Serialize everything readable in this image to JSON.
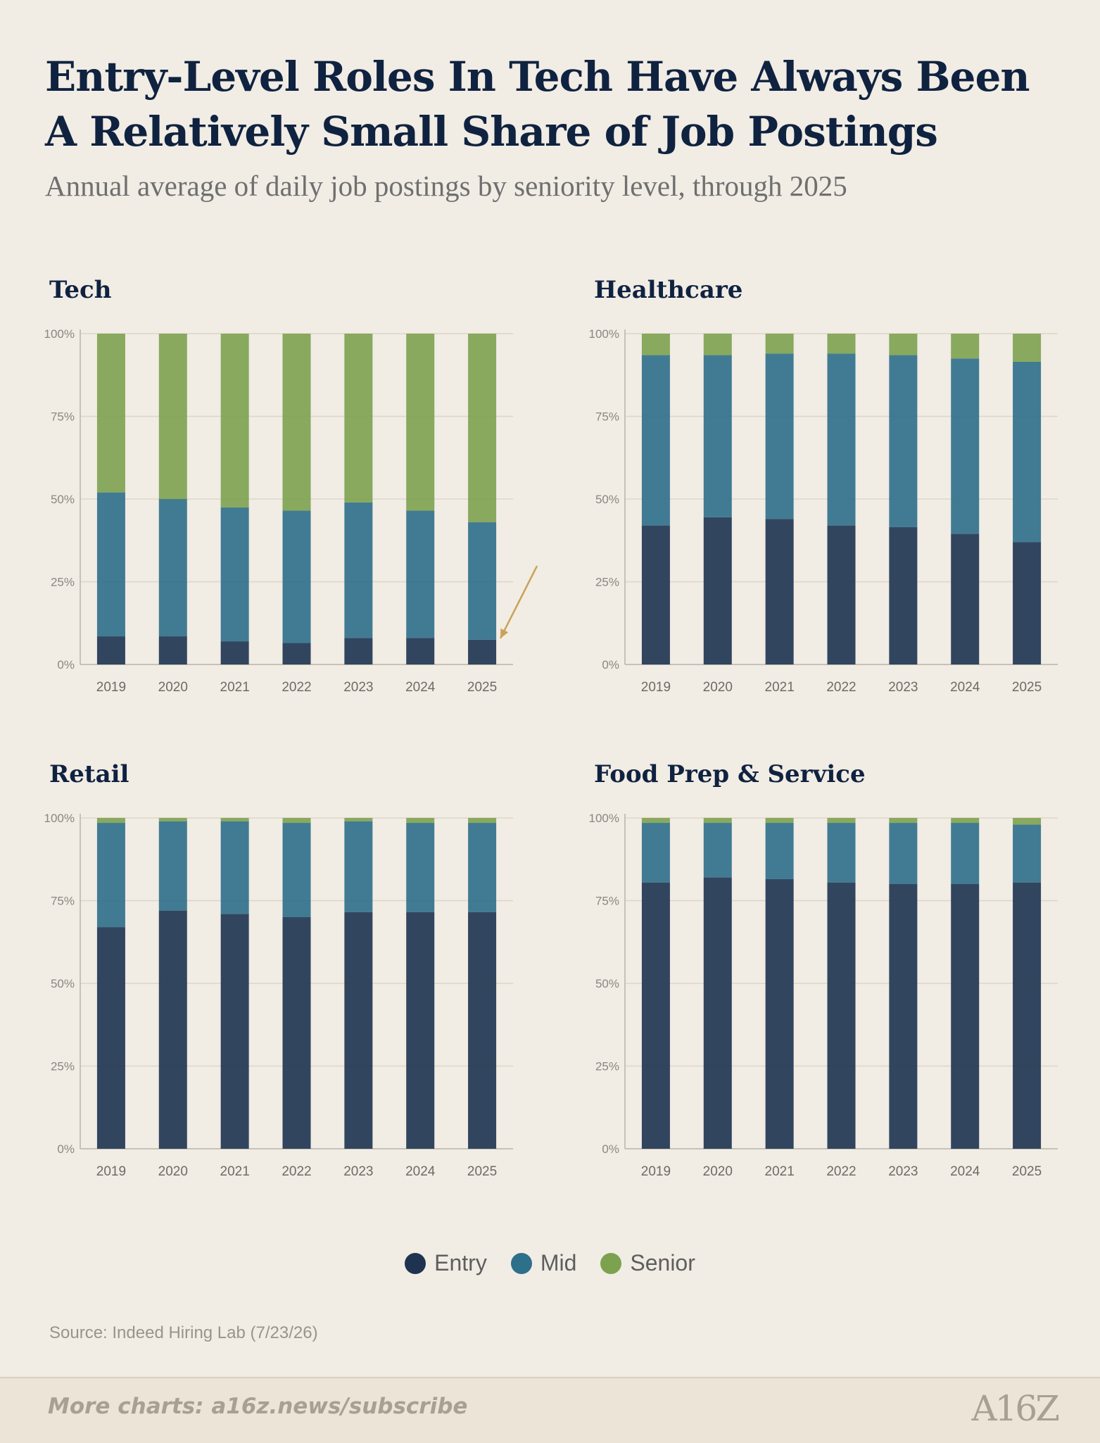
{
  "title": "Entry-Level Roles In Tech Have Always Been A Relatively Small Share of Job Postings",
  "subtitle": "Annual average of daily job postings by seniority level, through 2025",
  "colors": {
    "entry": "#1d3350",
    "mid": "#2e6f8a",
    "senior": "#7ca24f",
    "background": "#f1ece4",
    "annotation_arrow": "#c9a25a"
  },
  "chart_data": [
    {
      "type": "bar",
      "stacked": true,
      "title": "Tech",
      "categories": [
        "2019",
        "2020",
        "2021",
        "2022",
        "2023",
        "2024",
        "2025"
      ],
      "yticks": [
        "0%",
        "25%",
        "50%",
        "75%",
        "100%"
      ],
      "ylim": [
        0,
        100
      ],
      "grid": true,
      "annotation": "arrow pointing to the 2025 Entry share",
      "series": [
        {
          "name": "Entry",
          "values": [
            8.5,
            8.5,
            7,
            6.5,
            8,
            8,
            7.5
          ]
        },
        {
          "name": "Mid",
          "values": [
            43.5,
            41.5,
            40.5,
            40,
            41,
            38.5,
            35.5
          ]
        },
        {
          "name": "Senior",
          "values": [
            48,
            50,
            52.5,
            53.5,
            51,
            53.5,
            57
          ]
        }
      ]
    },
    {
      "type": "bar",
      "stacked": true,
      "title": "Healthcare",
      "categories": [
        "2019",
        "2020",
        "2021",
        "2022",
        "2023",
        "2024",
        "2025"
      ],
      "yticks": [
        "0%",
        "25%",
        "50%",
        "75%",
        "100%"
      ],
      "ylim": [
        0,
        100
      ],
      "grid": true,
      "series": [
        {
          "name": "Entry",
          "values": [
            42,
            44.5,
            44,
            42,
            41.5,
            39.5,
            37
          ]
        },
        {
          "name": "Mid",
          "values": [
            51.5,
            49,
            50,
            52,
            52,
            53,
            54.5
          ]
        },
        {
          "name": "Senior",
          "values": [
            6.5,
            6.5,
            6,
            6,
            6.5,
            7.5,
            8.5
          ]
        }
      ]
    },
    {
      "type": "bar",
      "stacked": true,
      "title": "Retail",
      "categories": [
        "2019",
        "2020",
        "2021",
        "2022",
        "2023",
        "2024",
        "2025"
      ],
      "yticks": [
        "0%",
        "25%",
        "50%",
        "75%",
        "100%"
      ],
      "ylim": [
        0,
        100
      ],
      "grid": true,
      "series": [
        {
          "name": "Entry",
          "values": [
            67,
            72,
            71,
            70,
            71.5,
            71.5,
            71.5
          ]
        },
        {
          "name": "Mid",
          "values": [
            31.5,
            27,
            28,
            28.5,
            27.5,
            27,
            27
          ]
        },
        {
          "name": "Senior",
          "values": [
            1.5,
            1,
            1,
            1.5,
            1,
            1.5,
            1.5
          ]
        }
      ]
    },
    {
      "type": "bar",
      "stacked": true,
      "title": "Food Prep & Service",
      "categories": [
        "2019",
        "2020",
        "2021",
        "2022",
        "2023",
        "2024",
        "2025"
      ],
      "yticks": [
        "0%",
        "25%",
        "50%",
        "75%",
        "100%"
      ],
      "ylim": [
        0,
        100
      ],
      "grid": true,
      "series": [
        {
          "name": "Entry",
          "values": [
            80.5,
            82,
            81.5,
            80.5,
            80,
            80,
            80.5
          ]
        },
        {
          "name": "Mid",
          "values": [
            18,
            16.5,
            17,
            18,
            18.5,
            18.5,
            17.5
          ]
        },
        {
          "name": "Senior",
          "values": [
            1.5,
            1.5,
            1.5,
            1.5,
            1.5,
            1.5,
            2
          ]
        }
      ]
    }
  ],
  "legend": [
    {
      "label": "Entry",
      "color": "#1d3350"
    },
    {
      "label": "Mid",
      "color": "#2e6f8a"
    },
    {
      "label": "Senior",
      "color": "#7ca24f"
    }
  ],
  "source": "Source: Indeed Hiring Lab (7/23/26)",
  "footer": {
    "text": "More charts: a16z.news/subscribe",
    "logo": "A16Z"
  }
}
